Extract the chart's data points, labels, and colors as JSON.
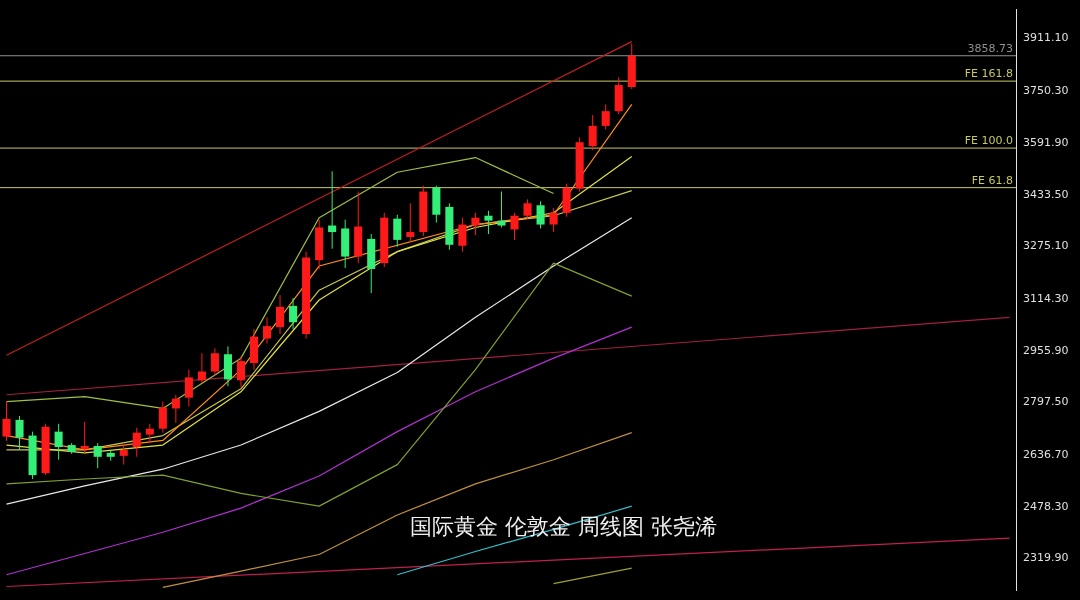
{
  "chart_data": {
    "type": "candlestick",
    "annotations": [
      "国际黄金 伦敦金 周线图 张尧浠"
    ],
    "categories": [
      null,
      null,
      null,
      null,
      null,
      null,
      null,
      null,
      null,
      null,
      null,
      null,
      null,
      null,
      null,
      null,
      null,
      null,
      null,
      null,
      null,
      null,
      null,
      null,
      null,
      null,
      null,
      null,
      null,
      null,
      null,
      null,
      null,
      null,
      null,
      null,
      null,
      null,
      null,
      null,
      null,
      null,
      null,
      null,
      null,
      null,
      null,
      null,
      null,
      null,
      null,
      null,
      null,
      null,
      null,
      null,
      null,
      null,
      null,
      null,
      null,
      null,
      null,
      null,
      null,
      null,
      null,
      null,
      null,
      null,
      null,
      null,
      null,
      null,
      null,
      null,
      null,
      null
    ],
    "ohlc": [
      [
        2693,
        2800,
        2680,
        2747
      ],
      [
        2744,
        2756,
        2652,
        2690
      ],
      [
        2696,
        2708,
        2563,
        2575
      ],
      [
        2581,
        2732,
        2575,
        2723
      ],
      [
        2708,
        2732,
        2622,
        2661
      ],
      [
        2667,
        2673,
        2640,
        2646
      ],
      [
        2655,
        2738,
        2643,
        2664
      ],
      [
        2664,
        2673,
        2596,
        2631
      ],
      [
        2643,
        2649,
        2619,
        2631
      ],
      [
        2634,
        2667,
        2607,
        2652
      ],
      [
        2661,
        2720,
        2631,
        2705
      ],
      [
        2699,
        2732,
        2673,
        2717
      ],
      [
        2717,
        2800,
        2705,
        2782
      ],
      [
        2779,
        2821,
        2735,
        2809
      ],
      [
        2812,
        2898,
        2785,
        2874
      ],
      [
        2865,
        2948,
        2859,
        2892
      ],
      [
        2892,
        2963,
        2880,
        2948
      ],
      [
        2945,
        2969,
        2847,
        2868
      ],
      [
        2865,
        2939,
        2844,
        2924
      ],
      [
        2918,
        3022,
        2898,
        2999
      ],
      [
        2993,
        3058,
        2978,
        3031
      ],
      [
        3028,
        3126,
        3007,
        3090
      ],
      [
        3093,
        3117,
        3022,
        3043
      ],
      [
        3007,
        3259,
        2993,
        3241
      ],
      [
        3233,
        3357,
        3206,
        3333
      ],
      [
        3339,
        3505,
        3268,
        3319
      ],
      [
        3330,
        3357,
        3209,
        3244
      ],
      [
        3244,
        3443,
        3224,
        3336
      ],
      [
        3298,
        3313,
        3132,
        3206
      ],
      [
        3224,
        3378,
        3212,
        3363
      ],
      [
        3360,
        3372,
        3274,
        3295
      ],
      [
        3304,
        3407,
        3289,
        3319
      ],
      [
        3319,
        3461,
        3307,
        3443
      ],
      [
        3455,
        3461,
        3348,
        3372
      ],
      [
        3396,
        3407,
        3265,
        3280
      ],
      [
        3277,
        3363,
        3259,
        3342
      ],
      [
        3339,
        3378,
        3310,
        3363
      ],
      [
        3369,
        3384,
        3313,
        3354
      ],
      [
        3354,
        3443,
        3333,
        3339
      ],
      [
        3327,
        3378,
        3295,
        3369
      ],
      [
        3369,
        3419,
        3360,
        3407
      ],
      [
        3401,
        3413,
        3330,
        3342
      ],
      [
        3342,
        3393,
        3319,
        3378
      ],
      [
        3378,
        3467,
        3366,
        3455
      ],
      [
        3452,
        3609,
        3443,
        3594
      ],
      [
        3582,
        3677,
        3570,
        3644
      ],
      [
        3644,
        3710,
        3633,
        3689
      ],
      [
        3689,
        3793,
        3680,
        3769
      ],
      [
        3763,
        3896,
        3757,
        3858.73
      ],
      null,
      null,
      null,
      null,
      null,
      null,
      null,
      null,
      null,
      null,
      null,
      null,
      null,
      null,
      null,
      null,
      null,
      null,
      null,
      null,
      null,
      null,
      null,
      null,
      null,
      null,
      null,
      null,
      null
    ],
    "colors": [
      "#ff1a1a",
      "#33ee77",
      "#33ee77",
      "#ff1a1a",
      "#33ee77",
      "#33ee77",
      "#ff1a1a",
      "#33ee77",
      "#33ee77",
      "#ff1a1a",
      "#ff1a1a",
      "#ff1a1a",
      "#ff1a1a",
      "#ff1a1a",
      "#ff1a1a",
      "#ff1a1a",
      "#ff1a1a",
      "#33ee77",
      "#ff1a1a",
      "#ff1a1a",
      "#ff1a1a",
      "#ff1a1a",
      "#33ee77",
      "#ff1a1a",
      "#ff1a1a",
      "#33ee77",
      "#33ee77",
      "#ff1a1a",
      "#33ee77",
      "#ff1a1a",
      "#33ee77",
      "#ff1a1a",
      "#ff1a1a",
      "#33ee77",
      "#33ee77",
      "#ff1a1a",
      "#ff1a1a",
      "#33ee77",
      "#33ee77",
      "#ff1a1a",
      "#ff1a1a",
      "#33ee77",
      "#ff1a1a",
      "#ff1a1a",
      "#ff1a1a",
      "#ff1a1a",
      "#ff1a1a",
      "#ff1a1a",
      "#ff1a1a",
      null,
      null,
      null,
      null,
      null,
      null,
      null,
      null,
      null,
      null,
      null,
      null,
      null,
      null,
      null,
      null,
      null,
      null,
      null,
      null,
      null,
      null,
      null,
      null,
      null,
      null,
      null,
      null,
      null
    ],
    "series": [
      {
        "type": "line",
        "color": "#ff8c1a",
        "values": [
          2696,
          null,
          null,
          null,
          null,
          null,
          2652,
          null,
          null,
          null,
          null,
          null,
          2681,
          null,
          null,
          null,
          null,
          null,
          2898,
          null,
          null,
          null,
          null,
          null,
          3215,
          null,
          null,
          null,
          null,
          null,
          null,
          null,
          null,
          null,
          null,
          null,
          3342,
          null,
          null,
          null,
          null,
          null,
          3372,
          null,
          null,
          null,
          null,
          null,
          3710,
          null,
          null,
          null,
          null,
          null,
          null,
          null,
          null,
          null,
          null,
          null,
          null,
          null,
          null,
          null,
          null,
          null,
          null,
          null,
          null,
          null,
          null,
          null,
          null,
          null,
          null,
          null,
          null,
          null
        ]
      },
      {
        "type": "line",
        "color": "#e0e040",
        "values": [
          2667,
          null,
          null,
          null,
          null,
          null,
          2643,
          null,
          null,
          null,
          null,
          null,
          2667,
          null,
          null,
          null,
          null,
          null,
          2830,
          null,
          null,
          null,
          null,
          null,
          3111,
          null,
          null,
          null,
          null,
          null,
          3259,
          null,
          null,
          null,
          null,
          null,
          3333,
          null,
          null,
          null,
          null,
          null,
          3378,
          null,
          null,
          null,
          null,
          null,
          3550,
          null,
          null,
          null,
          null,
          null,
          null,
          null,
          null,
          null,
          null,
          null,
          null,
          null,
          null,
          null,
          null,
          null,
          null,
          null,
          null,
          null,
          null,
          null,
          null,
          null,
          null,
          null,
          null,
          null
        ]
      },
      {
        "type": "line",
        "color": "#a0c040",
        "values": [
          2800,
          null,
          null,
          null,
          null,
          null,
          2815,
          null,
          null,
          null,
          null,
          null,
          2779,
          null,
          null,
          null,
          null,
          null,
          2933,
          null,
          null,
          null,
          null,
          null,
          3363,
          null,
          null,
          null,
          null,
          null,
          3502,
          null,
          null,
          null,
          null,
          null,
          3547,
          null,
          null,
          null,
          null,
          null,
          3437,
          null,
          null,
          null,
          null,
          null,
          null,
          null,
          null,
          null,
          null,
          null,
          null,
          null,
          null,
          null,
          null,
          null,
          null,
          null,
          null,
          null,
          null,
          null,
          null,
          null,
          null,
          null,
          null,
          null,
          null,
          null,
          null,
          null,
          null,
          null
        ]
      },
      {
        "type": "line",
        "color": "#c8c850",
        "values": [
          2652,
          null,
          null,
          null,
          null,
          null,
          2652,
          null,
          null,
          null,
          null,
          null,
          2696,
          null,
          null,
          null,
          null,
          null,
          2839,
          null,
          null,
          null,
          null,
          null,
          3141,
          null,
          null,
          null,
          null,
          null,
          3259,
          null,
          null,
          null,
          null,
          null,
          3342,
          null,
          null,
          null,
          null,
          null,
          3369,
          null,
          null,
          null,
          null,
          null,
          3446,
          null,
          null,
          null,
          null,
          null,
          null,
          null,
          null,
          null,
          null,
          null,
          null,
          null,
          null,
          null,
          null,
          null,
          null,
          null,
          null,
          null,
          null,
          null,
          null,
          null,
          null,
          null,
          null,
          null
        ]
      },
      {
        "type": "line",
        "color": "#80a030",
        "values": [
          2548,
          null,
          null,
          null,
          null,
          null,
          2563,
          null,
          null,
          null,
          null,
          null,
          2575,
          null,
          null,
          null,
          null,
          null,
          2519,
          null,
          null,
          null,
          null,
          null,
          2480,
          null,
          null,
          null,
          null,
          null,
          2607,
          null,
          null,
          null,
          null,
          null,
          2898,
          null,
          null,
          null,
          null,
          null,
          3224,
          null,
          null,
          null,
          null,
          null,
          3123,
          null,
          null,
          null,
          null,
          null,
          null,
          null,
          null,
          null,
          null,
          null,
          null,
          null,
          null,
          null,
          null,
          null,
          null,
          null,
          null,
          null,
          null,
          null,
          null,
          null,
          null,
          null,
          null,
          null
        ]
      },
      {
        "type": "line",
        "color": "#e8e8e8",
        "values": [
          2486,
          null,
          null,
          null,
          null,
          null,
          2542,
          null,
          null,
          null,
          null,
          null,
          2593,
          null,
          null,
          null,
          null,
          null,
          2667,
          null,
          null,
          null,
          null,
          null,
          2770,
          null,
          null,
          null,
          null,
          null,
          2889,
          null,
          null,
          null,
          null,
          null,
          3058,
          null,
          null,
          null,
          null,
          null,
          3215,
          null,
          null,
          null,
          null,
          null,
          3363,
          null,
          null,
          null,
          null,
          null,
          null,
          null,
          null,
          null,
          null,
          null,
          null,
          null,
          null,
          null,
          null,
          null,
          null,
          null,
          null,
          null,
          null,
          null,
          null,
          null,
          null,
          null,
          null,
          null
        ]
      },
      {
        "type": "line",
        "color": "#b030d0",
        "values": [
          2270,
          null,
          null,
          null,
          null,
          null,
          2335,
          null,
          null,
          null,
          null,
          null,
          2400,
          null,
          null,
          null,
          null,
          null,
          2474,
          null,
          null,
          null,
          null,
          null,
          2572,
          null,
          null,
          null,
          null,
          null,
          2708,
          null,
          null,
          null,
          null,
          null,
          2830,
          null,
          null,
          null,
          null,
          null,
          2933,
          null,
          null,
          null,
          null,
          null,
          3028,
          null,
          null,
          null,
          null,
          null,
          null,
          null,
          null,
          null,
          null,
          null,
          null,
          null,
          null,
          null,
          null,
          null,
          null,
          null,
          null,
          null,
          null,
          null,
          null,
          null,
          null,
          null,
          null,
          null
        ]
      },
      {
        "type": "line",
        "color": "#c09040",
        "values": [
          null,
          null,
          null,
          null,
          null,
          null,
          null,
          null,
          null,
          null,
          null,
          null,
          2231,
          null,
          null,
          null,
          null,
          null,
          2281,
          null,
          null,
          null,
          null,
          null,
          2332,
          null,
          null,
          null,
          null,
          null,
          2453,
          null,
          null,
          null,
          null,
          null,
          2548,
          null,
          null,
          null,
          null,
          null,
          2622,
          null,
          null,
          null,
          null,
          null,
          2705,
          null,
          null,
          null,
          null,
          null,
          null,
          null,
          null,
          null,
          null,
          null,
          null,
          null,
          null,
          null,
          null,
          null,
          null,
          null,
          null,
          null,
          null,
          null,
          null,
          null,
          null,
          null,
          null,
          null
        ]
      },
      {
        "type": "line",
        "color": "#30c0d0",
        "values": [
          null,
          null,
          null,
          null,
          null,
          null,
          null,
          null,
          null,
          null,
          null,
          null,
          null,
          null,
          null,
          null,
          null,
          null,
          null,
          null,
          null,
          null,
          null,
          null,
          null,
          null,
          null,
          null,
          null,
          null,
          2270,
          null,
          null,
          null,
          null,
          null,
          2341,
          null,
          null,
          null,
          null,
          null,
          2409,
          null,
          null,
          null,
          null,
          null,
          2480,
          null,
          null,
          null,
          null,
          null,
          null,
          null,
          null,
          null,
          null,
          null,
          null,
          null,
          null,
          null,
          null,
          null,
          null,
          null,
          null,
          null,
          null,
          null,
          null,
          null,
          null,
          null,
          null,
          null
        ]
      },
      {
        "type": "line",
        "color": "#a0a030",
        "values": [
          null,
          null,
          null,
          null,
          null,
          null,
          null,
          null,
          null,
          null,
          null,
          null,
          null,
          null,
          null,
          null,
          null,
          null,
          null,
          null,
          null,
          null,
          null,
          null,
          null,
          null,
          null,
          null,
          null,
          null,
          null,
          null,
          null,
          null,
          null,
          null,
          null,
          null,
          null,
          null,
          null,
          null,
          2243,
          null,
          null,
          null,
          null,
          null,
          2290,
          null,
          null,
          null,
          null,
          null,
          null,
          null,
          null,
          null,
          null,
          null,
          null,
          null,
          null,
          null,
          null,
          null,
          null,
          null,
          null,
          null,
          null,
          null,
          null,
          null,
          null,
          null,
          null,
          null
        ]
      },
      {
        "type": "line",
        "color": "#c02020",
        "values": [
          2942,
          null,
          null,
          null,
          null,
          null,
          null,
          null,
          null,
          null,
          null,
          null,
          null,
          null,
          null,
          null,
          null,
          null,
          null,
          null,
          null,
          null,
          null,
          null,
          null,
          null,
          null,
          null,
          null,
          null,
          null,
          null,
          null,
          null,
          null,
          null,
          null,
          null,
          null,
          null,
          null,
          null,
          null,
          null,
          null,
          null,
          null,
          null,
          3902,
          null,
          null,
          null,
          null,
          null,
          null,
          null,
          null,
          null,
          null,
          null,
          null,
          null,
          null,
          null,
          null,
          null,
          null,
          null,
          null,
          null,
          null,
          null,
          null,
          null,
          null,
          null,
          null,
          null
        ]
      },
      {
        "type": "line",
        "color": "#a02040",
        "values": [
          2821,
          null,
          null,
          null,
          null,
          null,
          null,
          null,
          null,
          null,
          null,
          null,
          null,
          null,
          null,
          null,
          null,
          null,
          null,
          null,
          null,
          null,
          null,
          null,
          null,
          null,
          null,
          null,
          null,
          null,
          null,
          null,
          null,
          null,
          null,
          null,
          null,
          null,
          null,
          null,
          null,
          null,
          null,
          null,
          null,
          null,
          null,
          null,
          null,
          null,
          null,
          null,
          null,
          null,
          null,
          null,
          null,
          null,
          null,
          null,
          null,
          null,
          null,
          null,
          null,
          null,
          null,
          null,
          null,
          null,
          null,
          null,
          null,
          null,
          null,
          null,
          null,
          3058
        ]
      },
      {
        "type": "line",
        "color": "#c02050",
        "values": [
          2234,
          null,
          null,
          null,
          null,
          null,
          null,
          null,
          null,
          null,
          null,
          null,
          null,
          null,
          null,
          null,
          null,
          null,
          null,
          null,
          null,
          null,
          null,
          null,
          null,
          null,
          null,
          null,
          null,
          null,
          null,
          null,
          null,
          null,
          null,
          null,
          null,
          null,
          null,
          null,
          null,
          null,
          null,
          null,
          null,
          null,
          null,
          null,
          null,
          null,
          null,
          null,
          null,
          null,
          null,
          null,
          null,
          null,
          null,
          null,
          null,
          null,
          null,
          null,
          null,
          null,
          null,
          null,
          null,
          null,
          null,
          null,
          null,
          null,
          null,
          null,
          null,
          2382
        ]
      }
    ],
    "ref_lines": [
      {
        "axis": "y",
        "value": 3858.73,
        "label": "3858.73",
        "color": "#909090"
      },
      {
        "axis": "y",
        "value": 3781,
        "label": "FE 161.8",
        "color": "#c8c864"
      },
      {
        "axis": "y",
        "value": 3576,
        "label": "FE 100.0",
        "color": "#c8c864"
      },
      {
        "axis": "y",
        "value": 3455,
        "label": "FE 61.8",
        "color": "#c8c864"
      }
    ],
    "ylim": [
      2222,
      4000
    ],
    "yticks": [
      {
        "value": 3911.1,
        "label": "3911.10"
      },
      {
        "value": 3750.3,
        "label": "3750.30"
      },
      {
        "value": 3591.9,
        "label": "3591.90"
      },
      {
        "value": 3433.5,
        "label": "3433.50"
      },
      {
        "value": 3275.1,
        "label": "3275.10"
      },
      {
        "value": 3114.3,
        "label": "3114.30"
      },
      {
        "value": 2955.9,
        "label": "2955.90"
      },
      {
        "value": 2797.5,
        "label": "2797.50"
      },
      {
        "value": 2636.7,
        "label": "2636.70"
      },
      {
        "value": 2478.3,
        "label": "2478.30"
      },
      {
        "value": 2319.9,
        "label": "2319.90"
      }
    ],
    "tick_labels": "y",
    "grid": false,
    "legend": false,
    "marker": "none",
    "line_style": "solid"
  }
}
